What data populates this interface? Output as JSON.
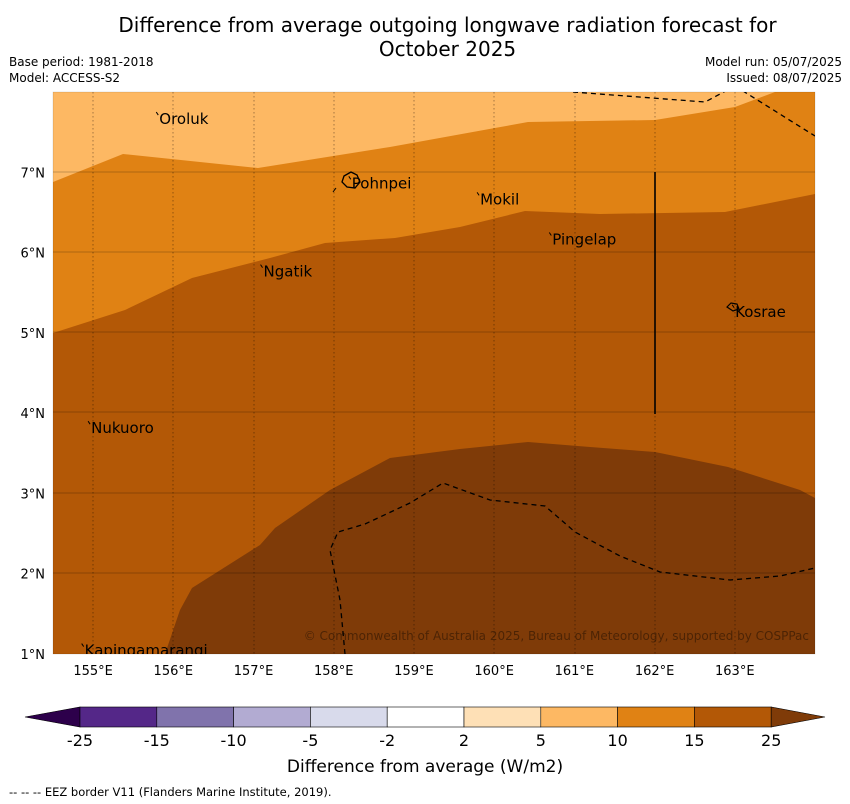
{
  "title_line1": "Difference from average outgoing longwave radiation forecast for",
  "title_line2": "October 2025",
  "meta_left": [
    "Base period: 1981-2018",
    "Model: ACCESS-S2"
  ],
  "meta_right": [
    "Model run: 05/07/2025",
    "Issued: 08/07/2025"
  ],
  "map": {
    "lon_range": [
      154.5,
      164.0
    ],
    "lat_range": [
      1.0,
      8.0
    ],
    "lon_ticks": [
      {
        "value": 155,
        "label": "155°E"
      },
      {
        "value": 156,
        "label": "156°E"
      },
      {
        "value": 157,
        "label": "157°E"
      },
      {
        "value": 158,
        "label": "158°E"
      },
      {
        "value": 159,
        "label": "159°E"
      },
      {
        "value": 160,
        "label": "160°E"
      },
      {
        "value": 161,
        "label": "161°E"
      },
      {
        "value": 162,
        "label": "162°E"
      },
      {
        "value": 163,
        "label": "163°E"
      }
    ],
    "lat_ticks": [
      {
        "value": 1,
        "label": "1°N"
      },
      {
        "value": 2,
        "label": "2°N"
      },
      {
        "value": 3,
        "label": "3°N"
      },
      {
        "value": 4,
        "label": "4°N"
      },
      {
        "value": 5,
        "label": "5°N"
      },
      {
        "value": 6,
        "label": "6°N"
      },
      {
        "value": 7,
        "label": "7°N"
      }
    ],
    "places": [
      {
        "name": "Oroluk",
        "lon": 155.8,
        "lat": 7.7
      },
      {
        "name": "Pohnpei",
        "lon": 158.2,
        "lat": 6.9
      },
      {
        "name": "Mokil",
        "lon": 159.8,
        "lat": 6.7
      },
      {
        "name": "Pingelap",
        "lon": 160.7,
        "lat": 6.2
      },
      {
        "name": "Ngatik",
        "lon": 157.1,
        "lat": 5.8
      },
      {
        "name": "Kosrae",
        "lon": 162.98,
        "lat": 5.3
      },
      {
        "name": "Nukuoro",
        "lon": 154.95,
        "lat": 3.85
      },
      {
        "name": "Kapingamarangi",
        "lon": 154.87,
        "lat": 1.08
      }
    ],
    "copyright": "© Commonwealth of Australia 2025, Bureau of Meteorology, supported by COSPPac"
  },
  "colorbar": {
    "label": "Difference from average (W/m2)",
    "ticks": [
      "-25",
      "-15",
      "-10",
      "-5",
      "-2",
      "2",
      "5",
      "10",
      "15",
      "25"
    ],
    "colors": [
      "#542788",
      "#8073ac",
      "#b2abd2",
      "#d8daeb",
      "#ffffff",
      "#fee0b6",
      "#fdb863",
      "#e08214",
      "#b35806"
    ],
    "under_color": "#2d004b",
    "over_color": "#7f3b08"
  },
  "footnote": "--  --  -- EEZ border V11 (Flanders Marine Institute, 2019)."
}
